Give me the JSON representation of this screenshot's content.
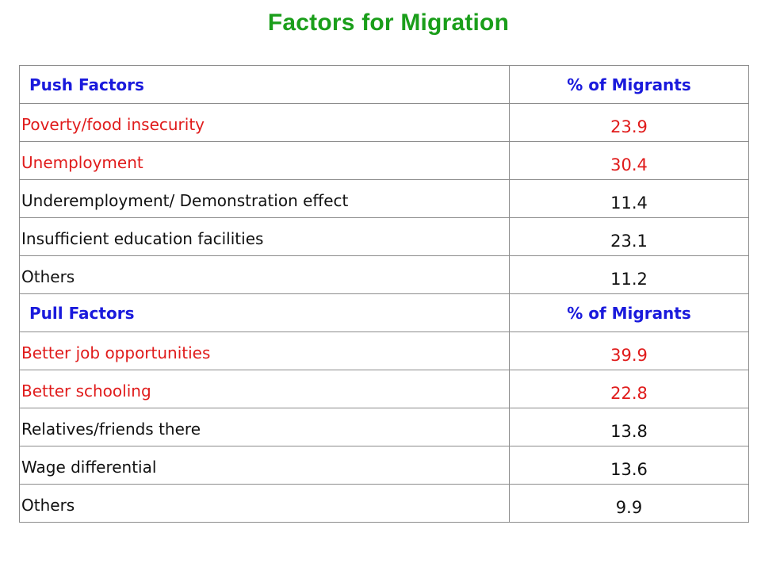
{
  "title": "Factors for Migration",
  "colors": {
    "title": "#1a9e1a",
    "header": "#1a1adc",
    "highlight": "#e01b1b",
    "normal": "#111111",
    "border": "#8c8c8c"
  },
  "push": {
    "header_label": "Push Factors",
    "header_value": "% of Migrants",
    "rows": [
      {
        "label": "Poverty/food insecurity",
        "value": "23.9",
        "highlight": true
      },
      {
        "label": "Unemployment",
        "value": "30.4",
        "highlight": true
      },
      {
        "label": "Underemployment/ Demonstration effect",
        "value": "11.4",
        "highlight": false
      },
      {
        "label": "Insufficient education facilities",
        "value": "23.1",
        "highlight": false
      },
      {
        "label": "Others",
        "value": "11.2",
        "highlight": false
      }
    ]
  },
  "pull": {
    "header_label": "Pull Factors",
    "header_value": "% of Migrants",
    "rows": [
      {
        "label": "Better job opportunities",
        "value": "39.9",
        "highlight": true
      },
      {
        "label": "Better schooling",
        "value": "22.8",
        "highlight": true
      },
      {
        "label": "Relatives/friends there",
        "value": "13.8",
        "highlight": false
      },
      {
        "label": "Wage differential",
        "value": "13.6",
        "highlight": false
      },
      {
        "label": "Others",
        "value": "9.9",
        "highlight": false
      }
    ]
  }
}
